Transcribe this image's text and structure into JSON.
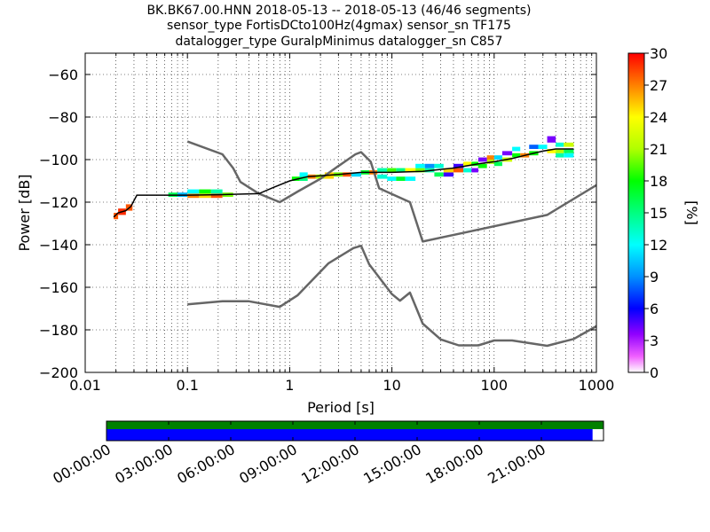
{
  "chart_data": {
    "type": "heatmap",
    "title_lines": [
      "BK.BK67.00.HNN   2018-05-13 -- 2018-05-13  (46/46 segments)",
      "sensor_type FortisDCto100Hz(4gmax) sensor_sn TF175",
      "datalogger_type GuralpMinimus datalogger_sn C857"
    ],
    "xlabel": "Period [s]",
    "ylabel": "Power [dB]",
    "xscale": "log",
    "xlim": [
      0.01,
      1000
    ],
    "ylim": [
      -200,
      -50
    ],
    "x_ticks": [
      {
        "v": 0.01,
        "label": "0.01"
      },
      {
        "v": 0.1,
        "label": "0.1"
      },
      {
        "v": 1,
        "label": "1"
      },
      {
        "v": 10,
        "label": "10"
      },
      {
        "v": 100,
        "label": "100"
      },
      {
        "v": 1000,
        "label": "1000"
      }
    ],
    "y_ticks": [
      {
        "v": -60,
        "label": "−60"
      },
      {
        "v": -80,
        "label": "−80"
      },
      {
        "v": -100,
        "label": "−100"
      },
      {
        "v": -120,
        "label": "−120"
      },
      {
        "v": -140,
        "label": "−140"
      },
      {
        "v": -160,
        "label": "−160"
      },
      {
        "v": -180,
        "label": "−180"
      },
      {
        "v": -200,
        "label": "−200"
      }
    ],
    "grid": "dotted",
    "colorbar": {
      "label": "[%]",
      "range": [
        0,
        30
      ],
      "ticks": [
        {
          "v": 0,
          "label": "0"
        },
        {
          "v": 3,
          "label": "3"
        },
        {
          "v": 6,
          "label": "6"
        },
        {
          "v": 9,
          "label": "9"
        },
        {
          "v": 12,
          "label": "12"
        },
        {
          "v": 15,
          "label": "15"
        },
        {
          "v": 18,
          "label": "18"
        },
        {
          "v": 21,
          "label": "21"
        },
        {
          "v": 24,
          "label": "24"
        },
        {
          "v": 27,
          "label": "27"
        },
        {
          "v": 30,
          "label": "30"
        }
      ]
    },
    "series": [
      {
        "values_x": [
          0.1,
          0.22,
          0.28,
          0.33,
          0.5,
          0.8,
          1.2,
          2,
          3,
          4.4,
          5,
          6.2,
          7.5,
          15,
          20,
          330,
          1000
        ],
        "values_y": [
          -91.5,
          -97.5,
          -104,
          -110.5,
          -116,
          -120,
          -115,
          -109,
          -103,
          -97.5,
          -96.5,
          -101,
          -113.5,
          -120,
          -138.5,
          -126,
          -112
        ]
      },
      {
        "values_x": [
          0.1,
          0.22,
          0.4,
          0.8,
          1.2,
          2.4,
          4.2,
          5,
          6,
          10,
          12,
          15,
          20,
          30,
          45,
          70,
          100,
          150,
          330,
          600,
          1000
        ],
        "values_y": [
          -168,
          -166.6,
          -166.6,
          -169.2,
          -163.7,
          -148.7,
          -141.6,
          -140.5,
          -149.2,
          -163.2,
          -166.3,
          -162.5,
          -177.1,
          -184.5,
          -187.3,
          -187.3,
          -185,
          -185,
          -187.5,
          -184.3,
          -178.3
        ]
      }
    ],
    "mode_line": {
      "x": [
        0.019,
        0.021,
        0.025,
        0.028,
        0.032,
        0.1,
        0.2,
        0.5,
        0.7,
        1,
        1.5,
        2,
        3,
        5,
        10,
        20,
        40,
        70,
        100,
        150,
        200,
        300,
        400,
        600
      ],
      "y": [
        -127,
        -125,
        -124,
        -122,
        -116.7,
        -116.7,
        -116.5,
        -116,
        -113,
        -110,
        -108,
        -107.6,
        -107,
        -106,
        -106,
        -105.5,
        -104,
        -102,
        -101,
        -99.5,
        -98,
        -96,
        -95,
        -95
      ]
    },
    "density_cells": [
      [
        0.019,
        0.021,
        -128,
        -125,
        28
      ],
      [
        0.021,
        0.025,
        -126,
        -123,
        29
      ],
      [
        0.025,
        0.029,
        -124,
        -121,
        28
      ],
      [
        0.065,
        0.08,
        -117.5,
        -115.5,
        16
      ],
      [
        0.08,
        0.1,
        -117.5,
        -115.5,
        10
      ],
      [
        0.1,
        0.13,
        -118,
        -116,
        27
      ],
      [
        0.13,
        0.17,
        -118,
        -116,
        25
      ],
      [
        0.17,
        0.22,
        -118,
        -116,
        28
      ],
      [
        0.1,
        0.13,
        -116,
        -114,
        12
      ],
      [
        0.13,
        0.17,
        -116,
        -114,
        18
      ],
      [
        0.17,
        0.22,
        -116,
        -114,
        14
      ],
      [
        0.22,
        0.28,
        -117.5,
        -115.5,
        20
      ],
      [
        1.05,
        1.25,
        -110,
        -108,
        18
      ],
      [
        1.25,
        1.5,
        -110,
        -107,
        15
      ],
      [
        1.5,
        1.8,
        -109,
        -107,
        27
      ],
      [
        1.8,
        2.2,
        -109,
        -107,
        21
      ],
      [
        1.25,
        1.5,
        -108,
        -106,
        12
      ],
      [
        2.2,
        2.7,
        -109,
        -106,
        25
      ],
      [
        2.7,
        3.3,
        -108,
        -106,
        20
      ],
      [
        3.3,
        4,
        -108,
        -106,
        28
      ],
      [
        4,
        5,
        -108,
        -106,
        11
      ],
      [
        5,
        6,
        -107,
        -105,
        17
      ],
      [
        6,
        7.2,
        -107,
        -105,
        27
      ],
      [
        7.2,
        9,
        -106,
        -104,
        14
      ],
      [
        9,
        11,
        -106,
        -104,
        19
      ],
      [
        11,
        13.5,
        -106,
        -104,
        15
      ],
      [
        7.2,
        9,
        -109,
        -107,
        13
      ],
      [
        9,
        11,
        -110,
        -108,
        12
      ],
      [
        11,
        13.5,
        -110,
        -108,
        17
      ],
      [
        13.5,
        17,
        -110,
        -108,
        12
      ],
      [
        13.5,
        17,
        -106,
        -104,
        24
      ],
      [
        17,
        21,
        -106,
        -104,
        20
      ],
      [
        21,
        26,
        -106,
        -104,
        14
      ],
      [
        17,
        21,
        -104,
        -102,
        12
      ],
      [
        21,
        26,
        -104,
        -102,
        9
      ],
      [
        26,
        32,
        -104,
        -102,
        13
      ],
      [
        26,
        32,
        -108,
        -106,
        16
      ],
      [
        32,
        40,
        -108,
        -106,
        5
      ],
      [
        32,
        40,
        -106,
        -104,
        25
      ],
      [
        40,
        50,
        -106,
        -104,
        28
      ],
      [
        40,
        50,
        -104,
        -102,
        5
      ],
      [
        50,
        60,
        -103,
        -101,
        24
      ],
      [
        60,
        70,
        -103,
        -101,
        18
      ],
      [
        50,
        60,
        -106,
        -104,
        13
      ],
      [
        60,
        70,
        -106,
        -104,
        4
      ],
      [
        70,
        85,
        -104,
        -102,
        18
      ],
      [
        85,
        100,
        -102,
        -100,
        21
      ],
      [
        70,
        85,
        -101,
        -99,
        4
      ],
      [
        85,
        100,
        -100,
        -98,
        27
      ],
      [
        100,
        120,
        -100,
        -98,
        11
      ],
      [
        100,
        120,
        -103,
        -101,
        16
      ],
      [
        120,
        150,
        -101,
        -99,
        22
      ],
      [
        150,
        180,
        -99,
        -97,
        18
      ],
      [
        120,
        150,
        -98,
        -96,
        4
      ],
      [
        150,
        180,
        -96,
        -94,
        12
      ],
      [
        180,
        220,
        -99,
        -97,
        27
      ],
      [
        220,
        270,
        -98,
        -96,
        18
      ],
      [
        220,
        270,
        -95,
        -93,
        8
      ],
      [
        270,
        330,
        -95,
        -93,
        12
      ],
      [
        330,
        400,
        -97,
        -95,
        24
      ],
      [
        400,
        480,
        -97,
        -95,
        21
      ],
      [
        480,
        600,
        -97,
        -95,
        16
      ],
      [
        330,
        400,
        -92,
        -89,
        4
      ],
      [
        400,
        480,
        -94,
        -92,
        13
      ],
      [
        480,
        600,
        -94,
        -92,
        22
      ],
      [
        400,
        480,
        -99,
        -97,
        14
      ],
      [
        480,
        600,
        -99,
        -97,
        12
      ]
    ],
    "timeline": {
      "tick_labels": [
        "00:00:00",
        "03:00:00",
        "06:00:00",
        "09:00:00",
        "12:00:00",
        "15:00:00",
        "18:00:00",
        "21:00:00"
      ],
      "hours": [
        0,
        3,
        6,
        9,
        12,
        15,
        18,
        21
      ],
      "total_hours": 24,
      "data_coverage_fraction": 1.0,
      "psd_coverage_fraction": 0.978,
      "colors": {
        "data": "#008000",
        "psd": "#0000ff"
      }
    }
  }
}
